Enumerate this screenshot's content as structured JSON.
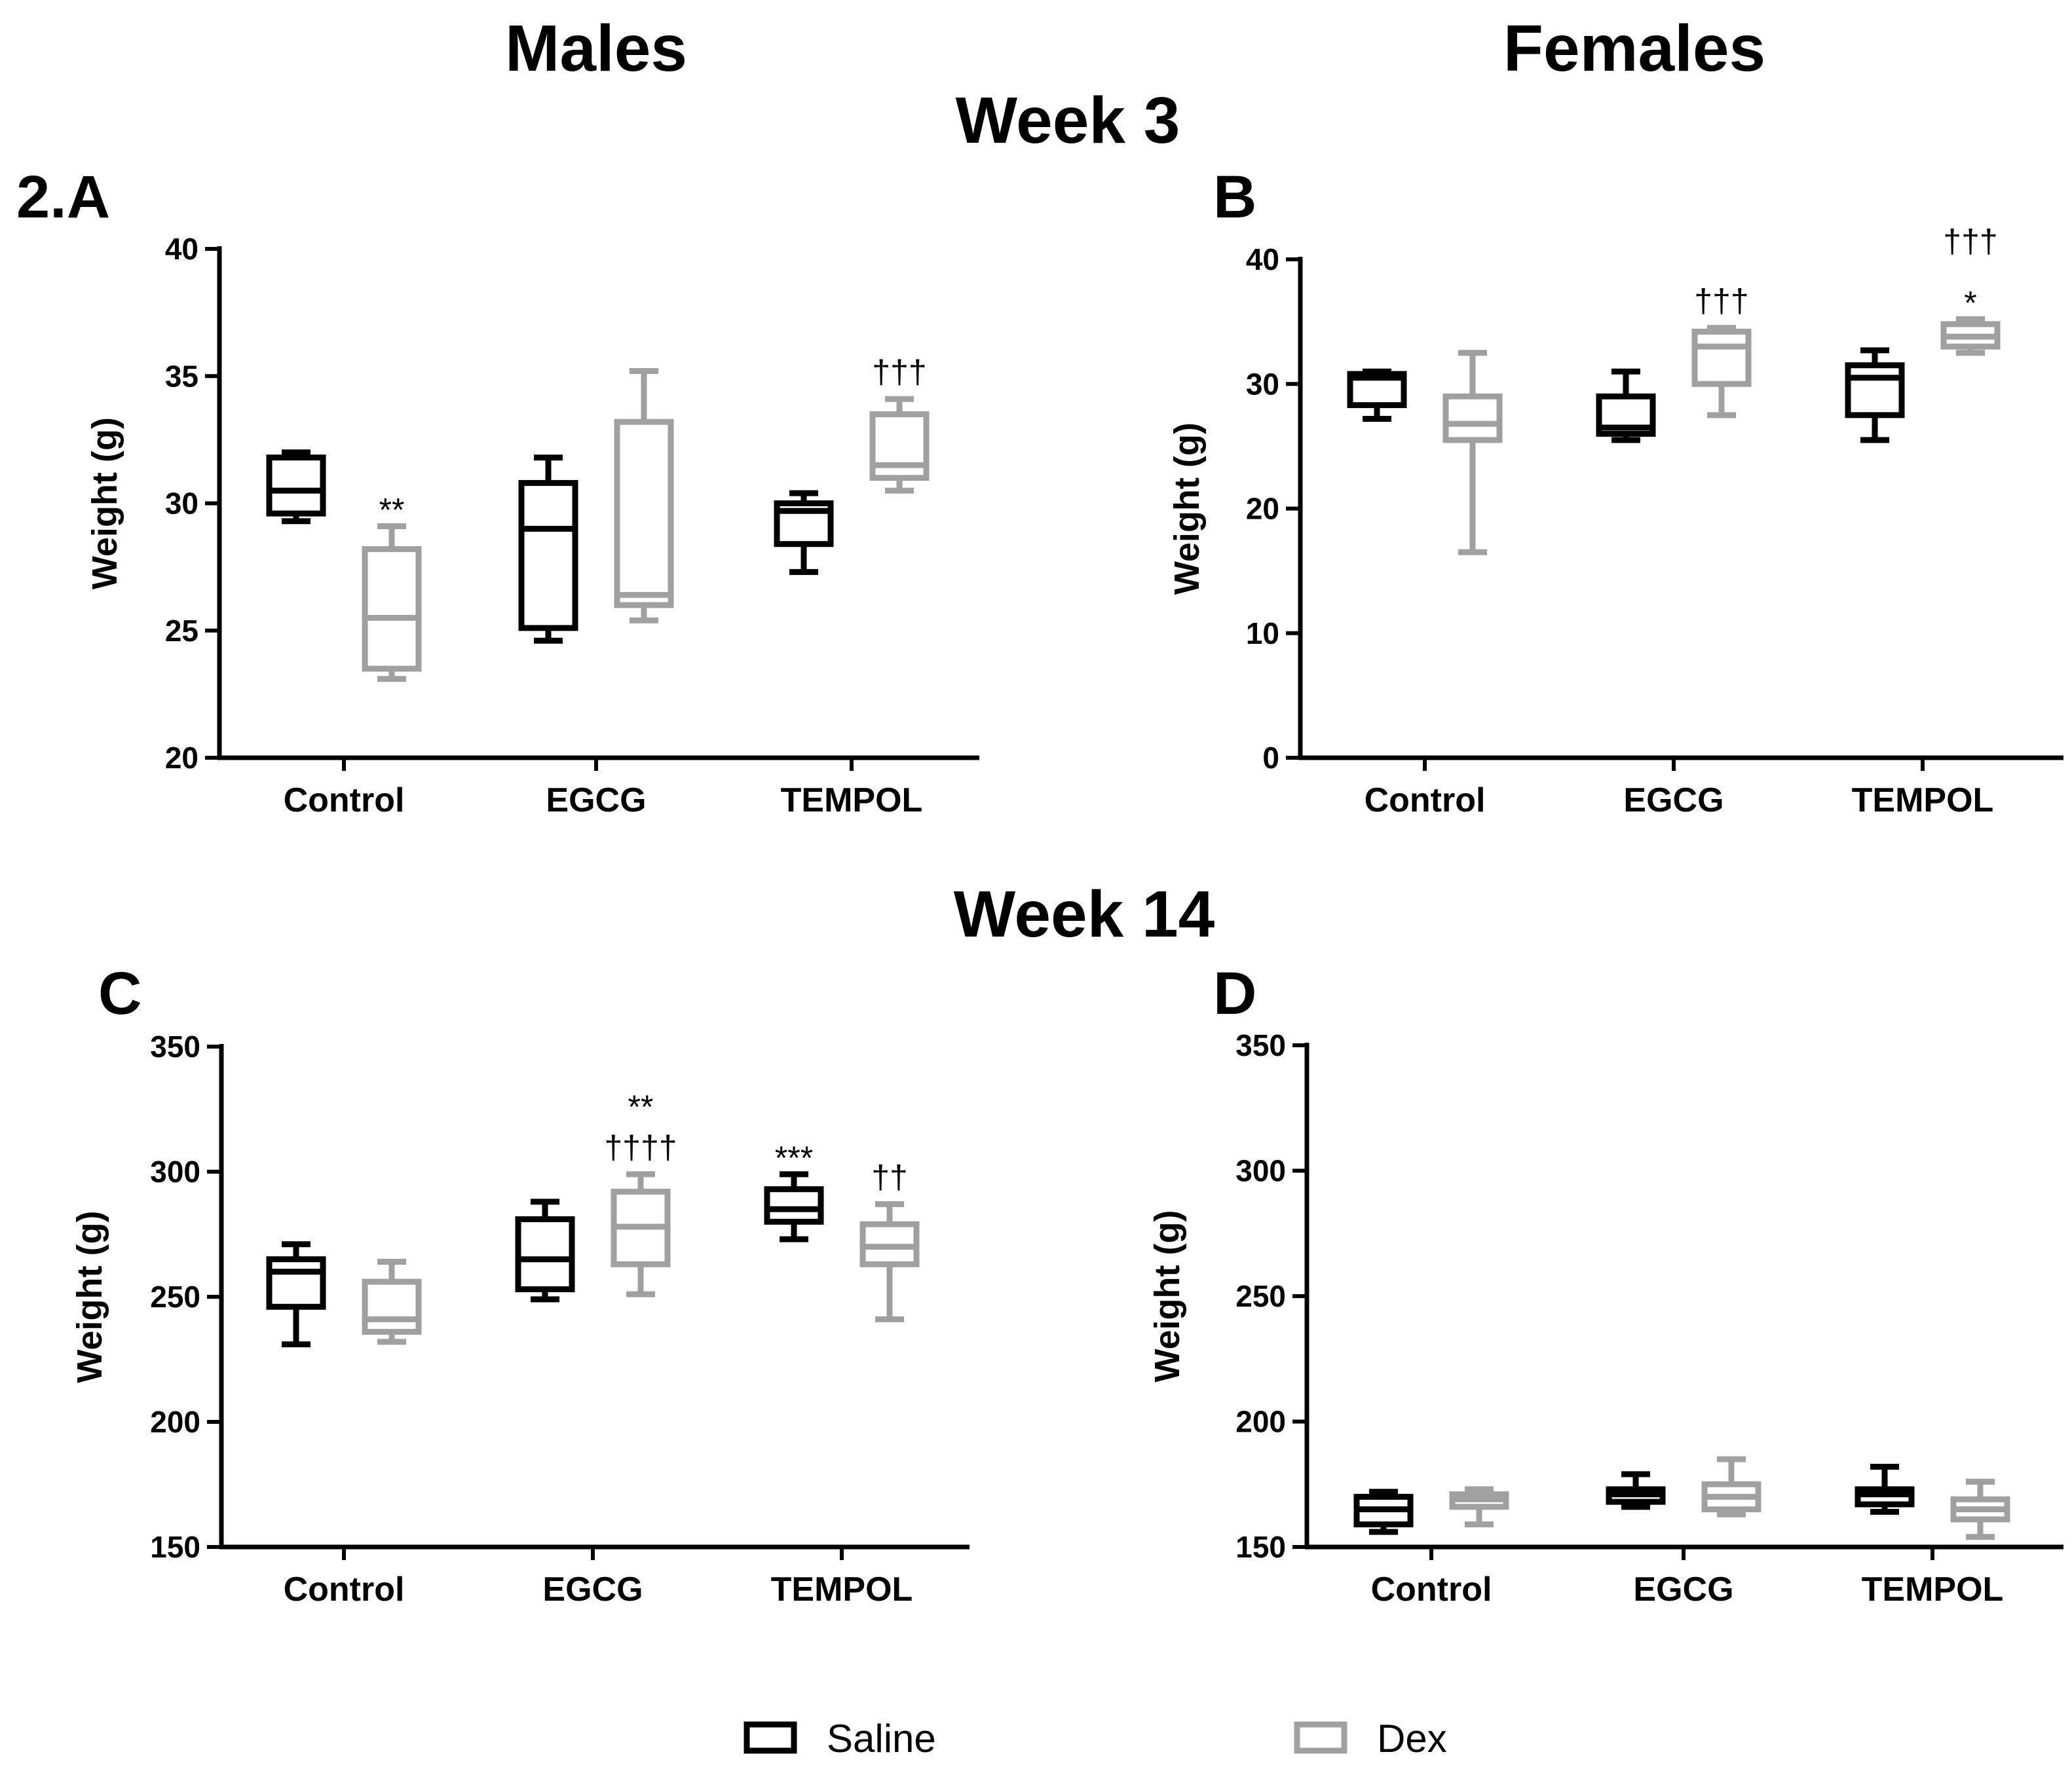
{
  "headings": {
    "males": "Males",
    "females": "Females",
    "week3": "Week 3",
    "week14": "Week 14"
  },
  "legend": {
    "saline": "Saline",
    "dex": "Dex",
    "saline_color": "#000000",
    "dex_color": "#a0a0a0"
  },
  "chart_data": [
    {
      "type": "box",
      "panel": "2.A",
      "ylabel": "Weight (g)",
      "ylim": [
        20,
        40
      ],
      "yticks": [
        "20",
        "25",
        "30",
        "35",
        "40"
      ],
      "categories": [
        "Control",
        "EGCG",
        "TEMPOL"
      ],
      "series": [
        {
          "name": "Saline",
          "boxes": [
            {
              "min": 29.3,
              "q1": 29.6,
              "median": 30.5,
              "q3": 31.8,
              "max": 32.0
            },
            {
              "min": 24.6,
              "q1": 25.1,
              "median": 29.0,
              "q3": 30.8,
              "max": 31.8
            },
            {
              "min": 27.3,
              "q1": 28.4,
              "median": 29.7,
              "q3": 30.0,
              "max": 30.4
            }
          ]
        },
        {
          "name": "Dex",
          "boxes": [
            {
              "min": 23.1,
              "q1": 23.5,
              "median": 25.5,
              "q3": 28.2,
              "max": 29.1
            },
            {
              "min": 25.4,
              "q1": 26.0,
              "median": 26.4,
              "q3": 33.2,
              "max": 35.2
            },
            {
              "min": 30.5,
              "q1": 31.0,
              "median": 31.5,
              "q3": 33.5,
              "max": 34.1
            }
          ]
        }
      ],
      "annotations": [
        {
          "category": "Control",
          "series": "Dex",
          "lines": [
            "**"
          ]
        },
        {
          "category": "TEMPOL",
          "series": "Dex",
          "lines": [
            "†††"
          ]
        }
      ]
    },
    {
      "type": "box",
      "panel": "B",
      "ylabel": "Weight (g)",
      "ylim": [
        0,
        40
      ],
      "yticks": [
        "0",
        "10",
        "20",
        "30",
        "40"
      ],
      "categories": [
        "Control",
        "EGCG",
        "TEMPOL"
      ],
      "series": [
        {
          "name": "Saline",
          "boxes": [
            {
              "min": 27.2,
              "q1": 28.3,
              "median": 30.5,
              "q3": 30.8,
              "max": 31.0
            },
            {
              "min": 25.5,
              "q1": 26.0,
              "median": 26.5,
              "q3": 29.0,
              "max": 31.0
            },
            {
              "min": 25.5,
              "q1": 27.5,
              "median": 30.5,
              "q3": 31.5,
              "max": 32.7
            }
          ]
        },
        {
          "name": "Dex",
          "boxes": [
            {
              "min": 16.5,
              "q1": 25.5,
              "median": 26.8,
              "q3": 29.0,
              "max": 32.5
            },
            {
              "min": 27.5,
              "q1": 30.0,
              "median": 33.0,
              "q3": 34.2,
              "max": 34.5
            },
            {
              "min": 32.5,
              "q1": 33.0,
              "median": 33.8,
              "q3": 34.8,
              "max": 35.2
            }
          ]
        }
      ],
      "annotations": [
        {
          "category": "EGCG",
          "series": "Dex",
          "lines": [
            "†††"
          ]
        },
        {
          "category": "TEMPOL",
          "series": "Dex",
          "lines": [
            "†††",
            "*"
          ]
        }
      ]
    },
    {
      "type": "box",
      "panel": "C",
      "ylabel": "Weight (g)",
      "ylim": [
        150,
        350
      ],
      "yticks": [
        "150",
        "200",
        "250",
        "300",
        "350"
      ],
      "categories": [
        "Control",
        "EGCG",
        "TEMPOL"
      ],
      "series": [
        {
          "name": "Saline",
          "boxes": [
            {
              "min": 231,
              "q1": 246,
              "median": 260,
              "q3": 265,
              "max": 271
            },
            {
              "min": 249,
              "q1": 253,
              "median": 265,
              "q3": 281,
              "max": 288
            },
            {
              "min": 273,
              "q1": 280,
              "median": 285,
              "q3": 293,
              "max": 299
            }
          ]
        },
        {
          "name": "Dex",
          "boxes": [
            {
              "min": 232,
              "q1": 236,
              "median": 241,
              "q3": 256,
              "max": 264
            },
            {
              "min": 251,
              "q1": 263,
              "median": 278,
              "q3": 292,
              "max": 299
            },
            {
              "min": 241,
              "q1": 263,
              "median": 270,
              "q3": 279,
              "max": 287
            }
          ]
        }
      ],
      "annotations": [
        {
          "category": "EGCG",
          "series": "Dex",
          "lines": [
            "**",
            "††††"
          ]
        },
        {
          "category": "TEMPOL",
          "series": "Saline",
          "lines": [
            "***"
          ]
        },
        {
          "category": "TEMPOL",
          "series": "Dex",
          "lines": [
            "††"
          ]
        }
      ]
    },
    {
      "type": "box",
      "panel": "D",
      "ylabel": "Weight (g)",
      "ylim": [
        150,
        350
      ],
      "yticks": [
        "150",
        "200",
        "250",
        "300",
        "350"
      ],
      "categories": [
        "Control",
        "EGCG",
        "TEMPOL"
      ],
      "series": [
        {
          "name": "Saline",
          "boxes": [
            {
              "min": 156,
              "q1": 159,
              "median": 165,
              "q3": 170,
              "max": 172
            },
            {
              "min": 166,
              "q1": 168,
              "median": 171,
              "q3": 173,
              "max": 179
            },
            {
              "min": 164,
              "q1": 167,
              "median": 171,
              "q3": 173,
              "max": 182
            }
          ]
        },
        {
          "name": "Dex",
          "boxes": [
            {
              "min": 159,
              "q1": 166,
              "median": 169,
              "q3": 171,
              "max": 173
            },
            {
              "min": 163,
              "q1": 165,
              "median": 170,
              "q3": 175,
              "max": 185
            },
            {
              "min": 154,
              "q1": 161,
              "median": 165,
              "q3": 169,
              "max": 176
            }
          ]
        }
      ],
      "annotations": []
    }
  ]
}
